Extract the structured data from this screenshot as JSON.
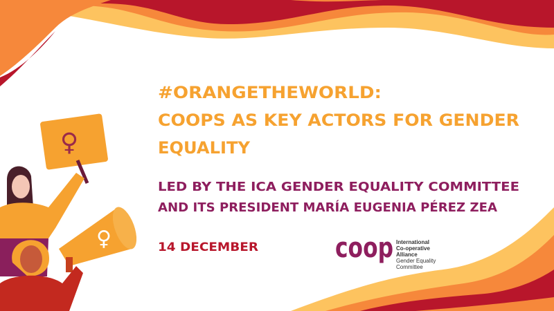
{
  "title": {
    "lines": [
      "#ORANGETHEWORLD:",
      "COOPS AS KEY ACTORS FOR GENDER",
      "EQUALITY"
    ]
  },
  "subtitle": {
    "lines": [
      "LED BY THE ICA GENDER EQUALITY COMMITTEE",
      "AND ITS PRESIDENT MARÍA EUGENIA PÉREZ ZEA"
    ]
  },
  "date": "14 DECEMBER",
  "logo": {
    "wordmark": "coop",
    "lines": [
      "International",
      "Co-operative",
      "Alliance",
      "Gender Equality",
      "Committee"
    ]
  }
}
